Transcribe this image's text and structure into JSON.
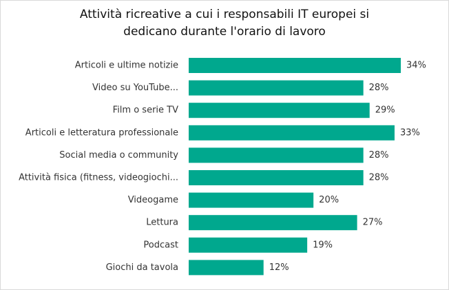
{
  "chart_data": {
    "type": "bar",
    "orientation": "horizontal",
    "title": "Attività ricreative a cui i responsabili IT europei si dedicano durante l'orario di lavoro",
    "title_lines": [
      "Attività ricreative a cui i responsabili IT europei si",
      "dedicano durante l'orario di lavoro"
    ],
    "categories": [
      "Articoli e ultime notizie",
      "Video su YouTube...",
      "Film o serie TV",
      "Articoli e letteratura professionale",
      "Social media o community",
      "Attività fisica (fitness, videogiochi...",
      "Videogame",
      "Lettura",
      "Podcast",
      "Giochi da tavola"
    ],
    "values": [
      34,
      28,
      29,
      33,
      28,
      28,
      20,
      27,
      19,
      12
    ],
    "value_labels": [
      "34%",
      "28%",
      "29%",
      "33%",
      "28%",
      "28%",
      "20%",
      "27%",
      "19%",
      "12%"
    ],
    "xlim": [
      0,
      34
    ],
    "grid": false,
    "bar_color": "#00A88E"
  }
}
